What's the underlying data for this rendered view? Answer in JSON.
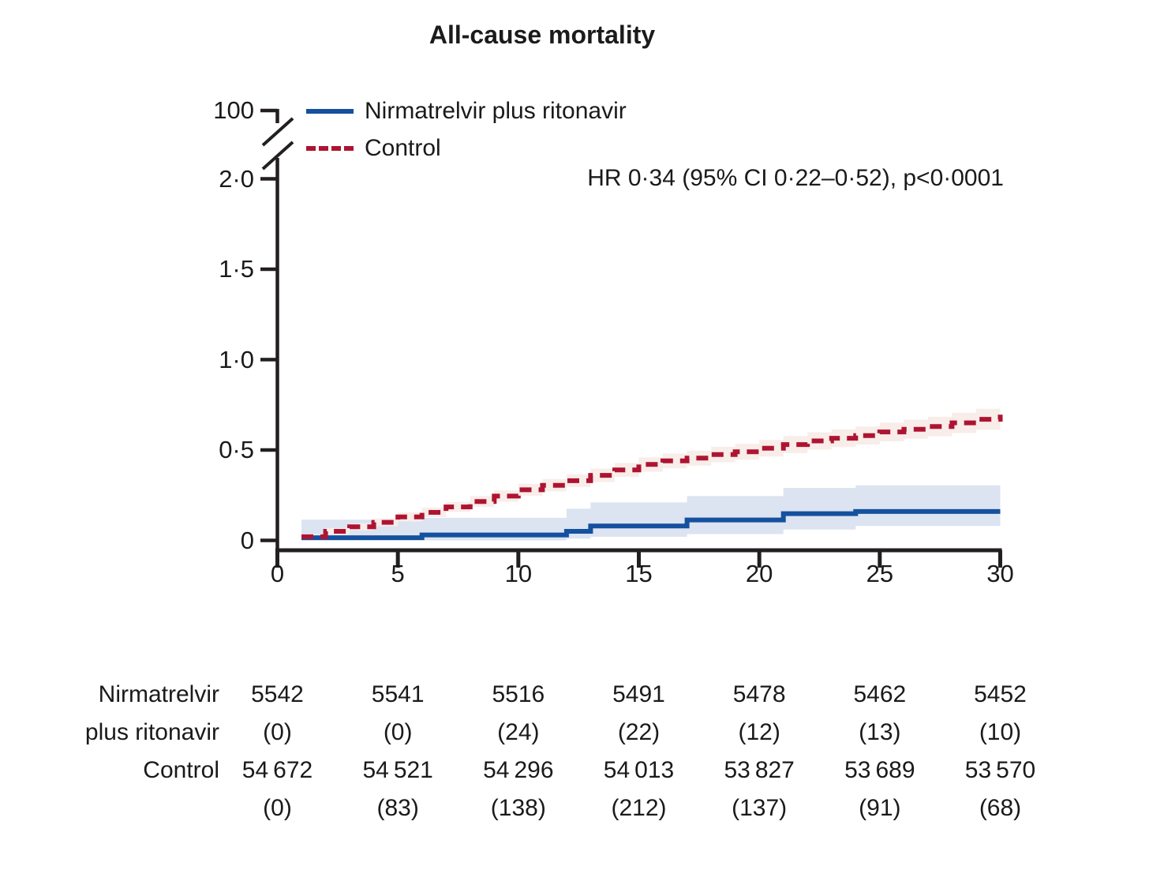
{
  "chart_data": {
    "type": "line",
    "subtype": "kaplan-meier-cumulative-incidence",
    "title": "All-cause mortality",
    "annotation": "HR 0·34 (95% CI 0·22–0·52), p<0·0001",
    "x_axis": {
      "label": "",
      "tick_labels": [
        "0",
        "5",
        "10",
        "15",
        "20",
        "25",
        "30"
      ],
      "tick_values": [
        0,
        5,
        10,
        15,
        20,
        25,
        30
      ],
      "range": [
        0,
        30
      ]
    },
    "y_axis": {
      "label": "",
      "tick_labels": [
        "0",
        "0·5",
        "1·0",
        "1·5",
        "2·0"
      ],
      "tick_values": [
        0,
        0.5,
        1.0,
        1.5,
        2.0
      ],
      "break_label": "100",
      "range": [
        0,
        2.0
      ],
      "axis_break": true
    },
    "legend_position": "top-left",
    "grid": false,
    "series": [
      {
        "name": "Nirmatrelvir plus ritonavir",
        "color": "#14519E",
        "style": "solid",
        "ci_color": "#DCE3F1",
        "steps": [
          [
            1,
            0.015
          ],
          [
            6,
            0.03
          ],
          [
            12,
            0.05
          ],
          [
            13,
            0.08
          ],
          [
            17,
            0.113
          ],
          [
            21,
            0.148
          ],
          [
            24,
            0.16
          ],
          [
            30,
            0.16
          ]
        ],
        "ci": [
          [
            1,
            0.0,
            0.115
          ],
          [
            6,
            0.0,
            0.125
          ],
          [
            12,
            0.01,
            0.175
          ],
          [
            13,
            0.02,
            0.21
          ],
          [
            17,
            0.035,
            0.245
          ],
          [
            21,
            0.06,
            0.29
          ],
          [
            24,
            0.08,
            0.305
          ],
          [
            30,
            0.08,
            0.305
          ]
        ]
      },
      {
        "name": "Control",
        "color": "#AE1432",
        "style": "dashed",
        "ci_color": "#F8EDE9",
        "steps": [
          [
            1,
            0.02
          ],
          [
            2,
            0.05
          ],
          [
            3,
            0.075
          ],
          [
            4,
            0.1
          ],
          [
            5,
            0.13
          ],
          [
            6,
            0.155
          ],
          [
            7,
            0.185
          ],
          [
            8,
            0.215
          ],
          [
            9,
            0.245
          ],
          [
            10,
            0.28
          ],
          [
            11,
            0.305
          ],
          [
            12,
            0.33
          ],
          [
            13,
            0.36
          ],
          [
            14,
            0.39
          ],
          [
            15,
            0.42
          ],
          [
            16,
            0.44
          ],
          [
            17,
            0.455
          ],
          [
            18,
            0.475
          ],
          [
            19,
            0.49
          ],
          [
            20,
            0.51
          ],
          [
            21,
            0.53
          ],
          [
            22,
            0.55
          ],
          [
            23,
            0.565
          ],
          [
            24,
            0.58
          ],
          [
            25,
            0.6
          ],
          [
            26,
            0.615
          ],
          [
            27,
            0.63
          ],
          [
            28,
            0.65
          ],
          [
            29,
            0.67
          ],
          [
            30,
            0.695
          ]
        ],
        "ci": [
          [
            1,
            0.005,
            0.035
          ],
          [
            2,
            0.032,
            0.068
          ],
          [
            3,
            0.055,
            0.095
          ],
          [
            4,
            0.078,
            0.122
          ],
          [
            5,
            0.105,
            0.155
          ],
          [
            6,
            0.129,
            0.181
          ],
          [
            7,
            0.157,
            0.213
          ],
          [
            8,
            0.185,
            0.245
          ],
          [
            9,
            0.214,
            0.276
          ],
          [
            10,
            0.247,
            0.313
          ],
          [
            11,
            0.271,
            0.339
          ],
          [
            12,
            0.295,
            0.365
          ],
          [
            13,
            0.323,
            0.397
          ],
          [
            14,
            0.352,
            0.428
          ],
          [
            15,
            0.38,
            0.46
          ],
          [
            16,
            0.399,
            0.481
          ],
          [
            17,
            0.413,
            0.497
          ],
          [
            18,
            0.432,
            0.518
          ],
          [
            19,
            0.446,
            0.534
          ],
          [
            20,
            0.464,
            0.556
          ],
          [
            21,
            0.483,
            0.577
          ],
          [
            22,
            0.502,
            0.598
          ],
          [
            23,
            0.516,
            0.614
          ],
          [
            24,
            0.53,
            0.63
          ],
          [
            25,
            0.548,
            0.652
          ],
          [
            26,
            0.562,
            0.668
          ],
          [
            27,
            0.576,
            0.684
          ],
          [
            28,
            0.594,
            0.706
          ],
          [
            29,
            0.612,
            0.728
          ],
          [
            30,
            0.635,
            0.755
          ]
        ]
      }
    ]
  },
  "risk_table": {
    "rows": [
      {
        "label": "Nirmatrelvir",
        "values": [
          "5542",
          "5541",
          "5516",
          "5491",
          "5478",
          "5462",
          "5452"
        ]
      },
      {
        "label": "plus ritonavir",
        "values": [
          "(0)",
          "(0)",
          "(24)",
          "(22)",
          "(12)",
          "(13)",
          "(10)"
        ]
      },
      {
        "label": "Control",
        "values": [
          "54 672",
          "54 521",
          "54 296",
          "54 013",
          "53 827",
          "53 689",
          "53 570"
        ]
      },
      {
        "label": "",
        "values": [
          "(0)",
          "(83)",
          "(138)",
          "(212)",
          "(137)",
          "(91)",
          "(68)"
        ]
      }
    ]
  }
}
